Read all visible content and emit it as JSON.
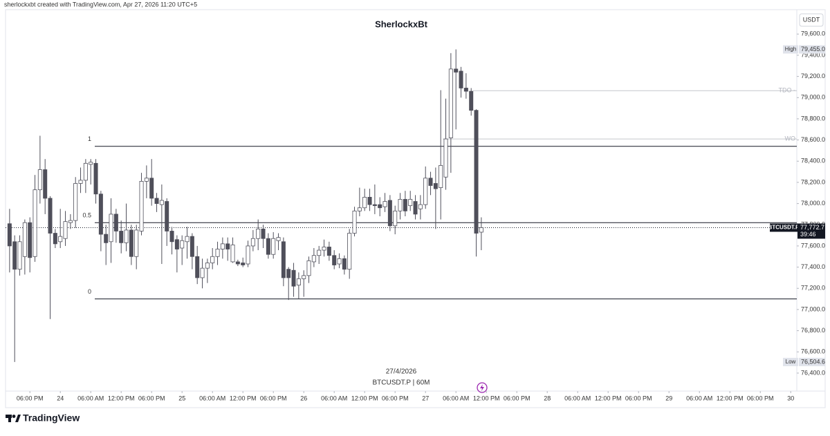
{
  "chart_data": {
    "type": "candlestick",
    "header": "sherlockxbt created with TradingView.com, Apr 27, 2026 11:20 UTC+5",
    "title": "SherlockxBt",
    "date_label": "27/4/2026",
    "symbol_label": "BTCUSDT.P | 60M",
    "currency": "USDT",
    "branding": "TradingView",
    "up_color": "#ffffff",
    "down_color": "#4f4f5a",
    "border_color": "#4f4f5a",
    "candles": {
      "x": [
        -10,
        -9,
        -8,
        -7,
        -6,
        -5,
        -4,
        -3,
        -2,
        -1,
        0,
        1,
        2,
        3,
        4,
        5,
        6,
        7,
        8,
        9,
        10,
        11,
        12,
        13,
        14,
        15,
        16,
        17,
        18,
        19,
        20,
        21,
        22,
        23,
        24,
        25,
        26,
        27,
        28,
        29,
        30,
        31,
        32,
        33,
        34,
        35,
        36,
        37,
        38,
        39,
        40,
        41,
        42,
        43,
        44,
        45,
        46,
        47,
        48,
        49,
        50,
        51,
        52,
        53,
        54,
        55,
        56,
        57,
        58,
        59,
        60,
        61,
        62,
        63,
        64,
        65,
        66,
        67,
        68,
        69,
        70,
        71,
        72,
        73,
        74,
        75,
        76,
        77,
        78,
        79,
        80,
        81,
        82,
        83
      ],
      "open": [
        77810,
        77640,
        77380,
        77500,
        77820,
        77500,
        78130,
        78320,
        78050,
        77720,
        77640,
        77670,
        77820,
        77840,
        78190,
        78220,
        78370,
        78380,
        78090,
        77710,
        77640,
        77900,
        77740,
        77630,
        77750,
        77500,
        77740,
        78210,
        78240,
        78050,
        77990,
        78020,
        77740,
        77660,
        77580,
        77640,
        77690,
        77500,
        77300,
        77390,
        77440,
        77500,
        77570,
        77620,
        77450,
        77450,
        77440,
        77430,
        77600,
        77670,
        77760,
        77670,
        77520,
        77650,
        77640,
        77380,
        77370,
        77230,
        77290,
        77320,
        77450,
        77510,
        77560,
        77590,
        77510,
        77430,
        77480,
        77380,
        77720,
        77930,
        77960,
        78060,
        77990,
        77990,
        77970,
        78030,
        77790,
        77930,
        78040,
        77980,
        78020,
        77950,
        77990,
        78240,
        78190,
        78150,
        78250,
        78620,
        79270,
        79250,
        79090,
        79060,
        78880,
        77730
      ],
      "high": [
        77950,
        77700,
        77700,
        77850,
        77870,
        78270,
        78640,
        78420,
        78070,
        77760,
        77950,
        77930,
        77900,
        78250,
        78340,
        78420,
        78420,
        78420,
        78120,
        77800,
        78050,
        77950,
        77840,
        78000,
        77800,
        77800,
        78290,
        78360,
        78420,
        78100,
        78180,
        78050,
        77780,
        77700,
        77700,
        77780,
        77720,
        77600,
        77480,
        77480,
        77580,
        77640,
        77680,
        77680,
        77680,
        77470,
        77490,
        77650,
        77750,
        77850,
        77800,
        77720,
        77730,
        77720,
        77680,
        77400,
        77440,
        77350,
        77370,
        77500,
        77580,
        77600,
        77660,
        77640,
        77560,
        77530,
        77510,
        77760,
        77970,
        78150,
        78140,
        78140,
        78180,
        78060,
        78100,
        78080,
        77980,
        78100,
        78120,
        78120,
        78080,
        78080,
        78350,
        78300,
        78340,
        79070,
        78990,
        79420,
        79455,
        79290,
        79230,
        79090,
        78890,
        77870
      ],
      "low": [
        77350,
        76504.6,
        77320,
        77330,
        77350,
        77450,
        78000,
        77900,
        76910,
        77580,
        77580,
        77600,
        77760,
        77770,
        78100,
        78100,
        78180,
        78000,
        77550,
        77420,
        77440,
        77630,
        77530,
        77550,
        77420,
        77380,
        77700,
        78050,
        77980,
        77920,
        77430,
        77600,
        77520,
        77350,
        77420,
        77480,
        77380,
        77240,
        77200,
        77250,
        77380,
        77420,
        77480,
        77460,
        77440,
        77410,
        77400,
        77400,
        77550,
        77560,
        77580,
        77480,
        77480,
        77560,
        77220,
        77090,
        77120,
        77100,
        77120,
        77250,
        77400,
        77430,
        77500,
        77460,
        77380,
        77390,
        77330,
        77290,
        77690,
        77880,
        77930,
        77930,
        77900,
        77880,
        77920,
        77740,
        77710,
        77850,
        77880,
        77930,
        77850,
        77850,
        77950,
        78080,
        77760,
        77850,
        78130,
        78290,
        78700,
        79000,
        78990,
        78830,
        77500,
        77560
      ],
      "close": [
        77600,
        77380,
        77640,
        77820,
        77490,
        78130,
        78320,
        78050,
        77720,
        77620,
        77690,
        77830,
        77840,
        78190,
        78220,
        78380,
        78390,
        78090,
        77710,
        77630,
        77900,
        77740,
        77630,
        77750,
        77500,
        77750,
        78210,
        78240,
        78050,
        78000,
        78030,
        77740,
        77640,
        77570,
        77650,
        77690,
        77500,
        77300,
        77390,
        77440,
        77500,
        77570,
        77620,
        77570,
        77610,
        77430,
        77420,
        77600,
        77670,
        77760,
        77670,
        77520,
        77670,
        77680,
        77300,
        77300,
        77220,
        77290,
        77320,
        77460,
        77510,
        77560,
        77590,
        77510,
        77420,
        77480,
        77380,
        77720,
        77930,
        77960,
        78060,
        77990,
        77980,
        77960,
        78020,
        77790,
        77930,
        78040,
        77930,
        78040,
        77900,
        77990,
        78240,
        78170,
        78140,
        78360,
        78610,
        79270,
        79240,
        79090,
        79060,
        78880,
        77720,
        77772.7
      ]
    },
    "xlim": [
      -10.8,
      145.2
    ],
    "xticks": [
      {
        "value": -6,
        "label": "06:00 PM"
      },
      {
        "value": 0,
        "label": "24"
      },
      {
        "value": 6,
        "label": "06:00 AM"
      },
      {
        "value": 12,
        "label": "12:00 PM"
      },
      {
        "value": 18,
        "label": "06:00 PM"
      },
      {
        "value": 24,
        "label": "25"
      },
      {
        "value": 30,
        "label": "06:00 AM"
      },
      {
        "value": 36,
        "label": "12:00 PM"
      },
      {
        "value": 42,
        "label": "06:00 PM"
      },
      {
        "value": 48,
        "label": "26"
      },
      {
        "value": 54,
        "label": "06:00 AM"
      },
      {
        "value": 60,
        "label": "12:00 PM"
      },
      {
        "value": 66,
        "label": "06:00 PM"
      },
      {
        "value": 72,
        "label": "27"
      },
      {
        "value": 78,
        "label": "06:00 AM"
      },
      {
        "value": 84,
        "label": "12:00 PM"
      },
      {
        "value": 90,
        "label": "06:00 PM"
      },
      {
        "value": 96,
        "label": "28"
      },
      {
        "value": 102,
        "label": "06:00 AM"
      },
      {
        "value": 108,
        "label": "12:00 PM"
      },
      {
        "value": 114,
        "label": "06:00 PM"
      },
      {
        "value": 120,
        "label": "29"
      },
      {
        "value": 126,
        "label": "06:00 AM"
      },
      {
        "value": 132,
        "label": "12:00 PM"
      },
      {
        "value": 138,
        "label": "06:00 PM"
      },
      {
        "value": 144,
        "label": "30"
      }
    ],
    "ylim": [
      76230,
      79830
    ],
    "yticks": [
      {
        "value": 79600,
        "label": "79,600.0"
      },
      {
        "value": 79400,
        "label": "79,400.0"
      },
      {
        "value": 79200,
        "label": "79,200.0"
      },
      {
        "value": 79000,
        "label": "79,000.0"
      },
      {
        "value": 78800,
        "label": "78,800.0"
      },
      {
        "value": 78600,
        "label": "78,600.0"
      },
      {
        "value": 78400,
        "label": "78,400.0"
      },
      {
        "value": 78200,
        "label": "78,200.0"
      },
      {
        "value": 78000,
        "label": "78,000.0"
      },
      {
        "value": 77800,
        "label": "77,800.0"
      },
      {
        "value": 77600,
        "label": "77,600.0"
      },
      {
        "value": 77400,
        "label": "77,400.0"
      },
      {
        "value": 77200,
        "label": "77,200.0"
      },
      {
        "value": 77000,
        "label": "77,000.0"
      },
      {
        "value": 76800,
        "label": "76,800.0"
      },
      {
        "value": 76600,
        "label": "76,600.0"
      },
      {
        "value": 76400,
        "label": "76,400.0"
      }
    ],
    "levels": [
      {
        "label": "1",
        "value": 78540
      },
      {
        "label": "0.5",
        "value": 77820
      },
      {
        "label": "0",
        "value": 77100
      },
      {
        "label": "TDO -",
        "value": 79065
      },
      {
        "label": "WO",
        "value": 78610
      }
    ],
    "high_marker": {
      "label": "High",
      "value": 79455,
      "value_label": "79,455.0"
    },
    "low_marker": {
      "label": "Low",
      "value": 76504.6,
      "value_label": "76,504.6"
    },
    "last_price": {
      "label": "BTCUSDT.P",
      "value": 77772.7,
      "value_label": "77,772.7",
      "countdown": "39:46"
    }
  }
}
